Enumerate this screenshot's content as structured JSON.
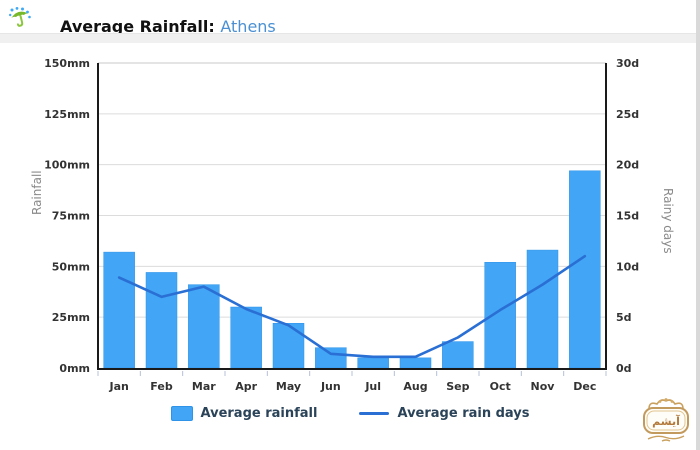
{
  "header": {
    "title": "Average Rainfall:",
    "city": "Athens"
  },
  "colors": {
    "bar": "#42a5f5",
    "bar_border": "#2f93e8",
    "line": "#2a6fd4",
    "city_link": "#4a90d2",
    "axis_text": "#333333",
    "axis_title_text": "#8a8a8a",
    "grid": "#dcdcdc",
    "top_border": "#c8c8c8",
    "frame": "#1a1a1a",
    "x_tick": "#b5c0d8",
    "divider_band": "#f0f0f0",
    "legend_text": "#2a4358",
    "watermark_gold": "#c39a5e"
  },
  "chart_data": {
    "type": "bar",
    "title": "Average Rainfall: Athens",
    "categories": [
      "Jan",
      "Feb",
      "Mar",
      "Apr",
      "May",
      "Jun",
      "Jul",
      "Aug",
      "Sep",
      "Oct",
      "Nov",
      "Dec"
    ],
    "series": [
      {
        "name": "Average rainfall",
        "type": "bar",
        "axis": "left",
        "unit": "mm",
        "color": "#42a5f5",
        "values": [
          57,
          47,
          41,
          30,
          22,
          10,
          5,
          5,
          13,
          52,
          58,
          97
        ]
      },
      {
        "name": "Average rain days",
        "type": "line",
        "axis": "right",
        "unit": "days",
        "color": "#2a6fd4",
        "values": [
          8.9,
          7,
          8,
          5.8,
          4.2,
          1.4,
          1.1,
          1.1,
          3,
          5.7,
          8.2,
          11
        ]
      }
    ],
    "left_axis": {
      "label": "Rainfall",
      "min": 0,
      "max": 150,
      "tick_step": 25,
      "ticks": [
        "150mm",
        "125mm",
        "100mm",
        "75mm",
        "50mm",
        "25mm",
        "0mm"
      ]
    },
    "right_axis": {
      "label": "Rainy days",
      "min": 0,
      "max": 30,
      "tick_step": 5,
      "ticks": [
        "30d",
        "25d",
        "20d",
        "15d",
        "10d",
        "5d",
        "0d"
      ]
    },
    "legend_position": "bottom",
    "grid": "horizontal"
  },
  "watermark": {
    "text": "آیشم"
  }
}
